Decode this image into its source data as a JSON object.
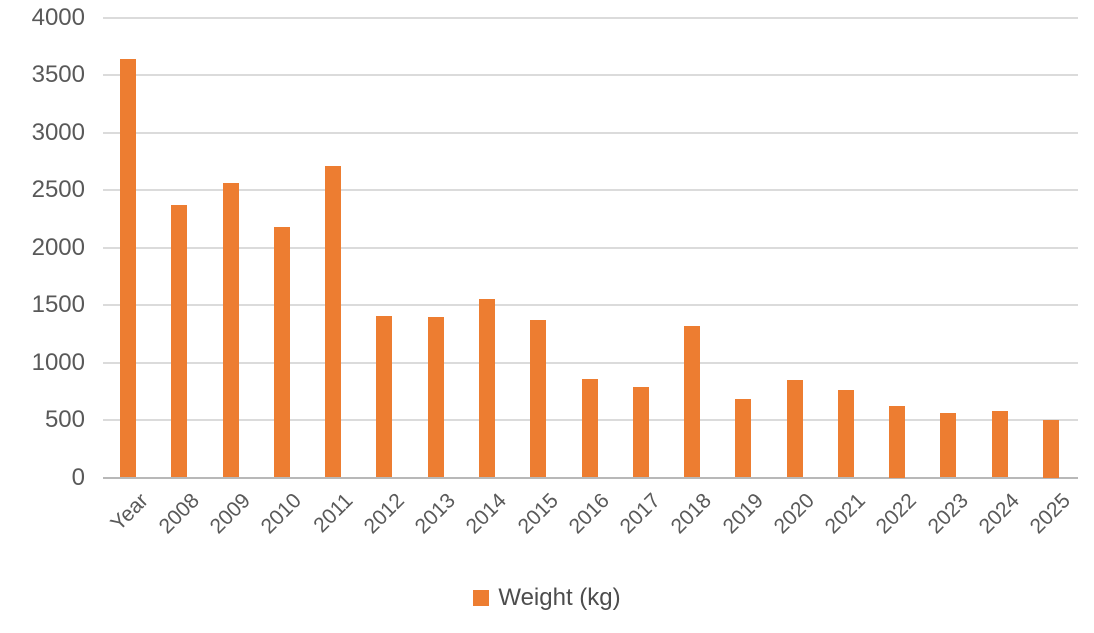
{
  "chart_data": {
    "type": "bar",
    "title": "",
    "xlabel": "",
    "ylabel": "",
    "categories": [
      "Year",
      "2008",
      "2009",
      "2010",
      "2011",
      "2012",
      "2013",
      "2014",
      "2015",
      "2016",
      "2017",
      "2018",
      "2019",
      "2020",
      "2021",
      "2022",
      "2023",
      "2024",
      "2025"
    ],
    "values": [
      3640,
      2370,
      2560,
      2180,
      2710,
      1410,
      1400,
      1550,
      1370,
      860,
      790,
      1320,
      680,
      850,
      760,
      625,
      560,
      580,
      500
    ],
    "series_name": "Weight (kg)",
    "ylim": [
      0,
      4000
    ],
    "yticks": [
      0,
      500,
      1000,
      1500,
      2000,
      2500,
      3000,
      3500,
      4000
    ],
    "grid": true,
    "legend_position": "bottom",
    "colors": {
      "bar": "#ED7D31",
      "gridline": "#dbdbdb",
      "axis_line": "#b8b8b8",
      "tick_label": "#595959",
      "legend_text": "#4d4d4d"
    }
  },
  "legend": {
    "label": "Weight (kg)"
  }
}
